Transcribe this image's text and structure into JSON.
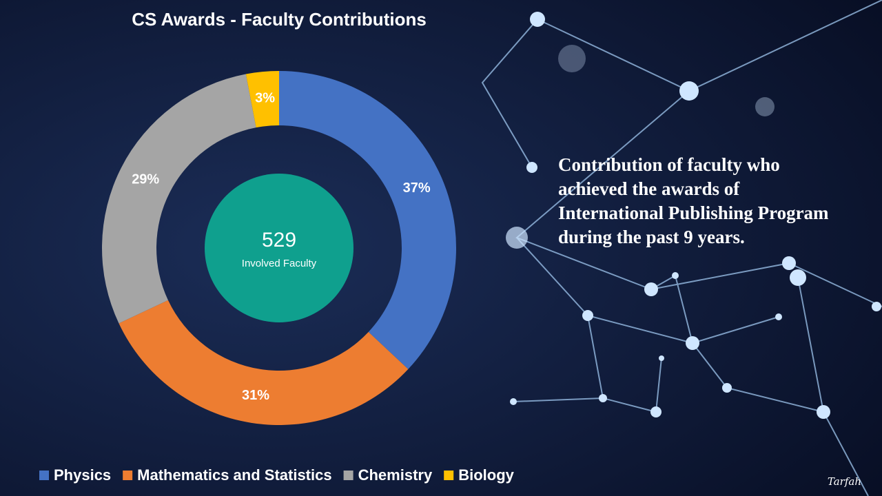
{
  "chart_data": {
    "type": "donut",
    "title": "CS Awards - Faculty Contributions",
    "categories": [
      "Physics",
      "Mathematics and Statistics",
      "Chemistry",
      "Biology"
    ],
    "values": [
      37,
      31,
      29,
      3
    ],
    "value_labels": [
      "37%",
      "31%",
      "29%",
      "3%"
    ],
    "colors": [
      "#4472c4",
      "#ed7d31",
      "#a5a5a5",
      "#ffc000"
    ],
    "center_value": 529,
    "center_label": "Involved Faculty",
    "legend": "bottom"
  },
  "side_text": "Contribution of  faculty who achieved the awards of International Publishing Program during the past 9 years.",
  "signature": "Tarfah"
}
